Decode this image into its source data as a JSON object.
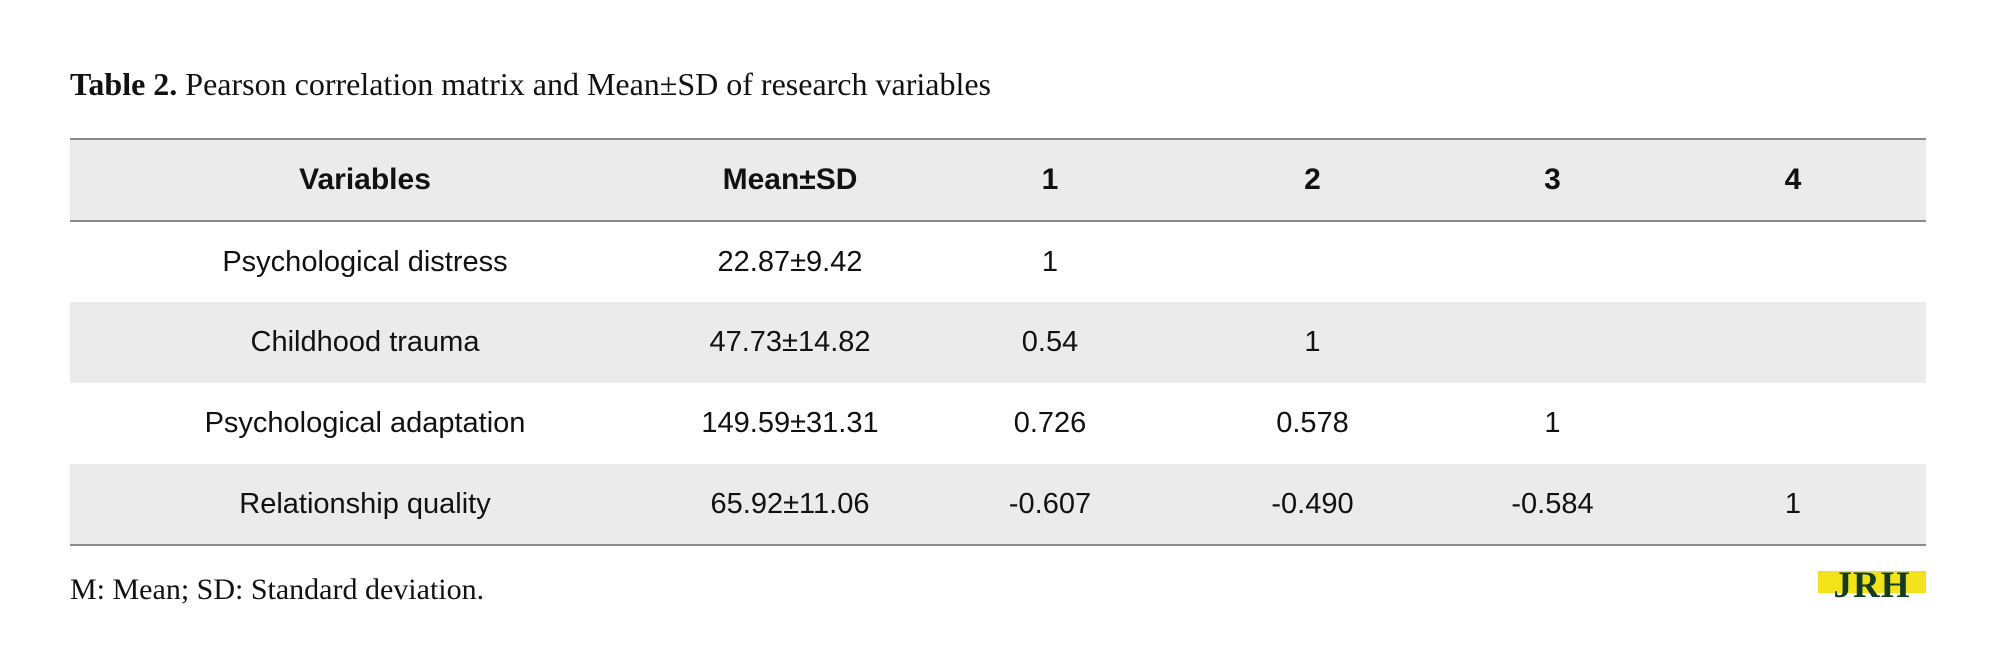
{
  "caption": {
    "label": "Table 2.",
    "text": " Pearson correlation matrix and Mean±SD of research variables"
  },
  "table": {
    "headers": [
      "Variables",
      "Mean±SD",
      "1",
      "2",
      "3",
      "4"
    ],
    "rows": [
      [
        "Psychological distress",
        "22.87±9.42",
        "1",
        "",
        "",
        ""
      ],
      [
        "Childhood trauma",
        "47.73±14.82",
        "0.54",
        "1",
        "",
        ""
      ],
      [
        "Psychological adaptation",
        "149.59±31.31",
        "0.726",
        "0.578",
        "1",
        ""
      ],
      [
        "Relationship quality",
        "65.92±11.06",
        "-0.607",
        "-0.490",
        "-0.584",
        "1"
      ]
    ]
  },
  "footnote": "M: Mean; SD: Standard deviation.",
  "logo": {
    "text": "JRH",
    "colors": {
      "fill": "#f2e21a",
      "ink": "#123b1f"
    }
  }
}
